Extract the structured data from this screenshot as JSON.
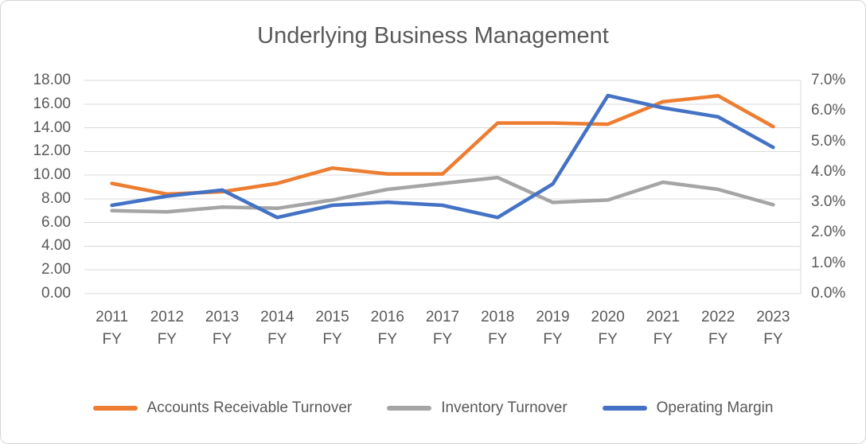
{
  "chart_data": {
    "type": "line",
    "title": "Underlying Business Management",
    "categories": [
      "2011",
      "2012",
      "2013",
      "2014",
      "2015",
      "2016",
      "2017",
      "2018",
      "2019",
      "2020",
      "2021",
      "2022",
      "2023"
    ],
    "category_suffix": "FY",
    "series": [
      {
        "name": "Accounts Receivable Turnover",
        "axis": "left",
        "color": "#ED7D31",
        "values": [
          9.3,
          8.4,
          8.6,
          9.3,
          10.6,
          10.1,
          10.1,
          14.4,
          14.4,
          14.3,
          16.2,
          16.7,
          14.1
        ]
      },
      {
        "name": "Inventory Turnover",
        "axis": "left",
        "color": "#A5A5A5",
        "values": [
          7.0,
          6.9,
          7.3,
          7.2,
          7.9,
          8.8,
          9.3,
          9.8,
          7.7,
          7.9,
          9.4,
          8.8,
          7.5
        ]
      },
      {
        "name": "Operating Margin",
        "axis": "right",
        "color": "#4472C4",
        "values": [
          2.9,
          3.2,
          3.4,
          2.5,
          2.9,
          3.0,
          2.9,
          2.5,
          3.6,
          6.5,
          6.1,
          5.8,
          4.8
        ]
      }
    ],
    "left_axis": {
      "min": 0,
      "max": 18,
      "step": 2,
      "tick_labels": [
        "18.00",
        "16.00",
        "14.00",
        "12.00",
        "10.00",
        "8.00",
        "6.00",
        "4.00",
        "2.00",
        "0.00"
      ]
    },
    "right_axis": {
      "min": 0,
      "max": 7,
      "step": 1,
      "unit": "%",
      "tick_labels": [
        "7.0%",
        "6.0%",
        "5.0%",
        "4.0%",
        "3.0%",
        "2.0%",
        "1.0%",
        "0.0%"
      ]
    },
    "legend": {
      "position": "bottom",
      "entries": [
        "Accounts Receivable Turnover",
        "Inventory Turnover",
        "Operating Margin"
      ]
    },
    "grid": true,
    "gridline_color": "#D9D9D9",
    "text_color": "#595959"
  }
}
